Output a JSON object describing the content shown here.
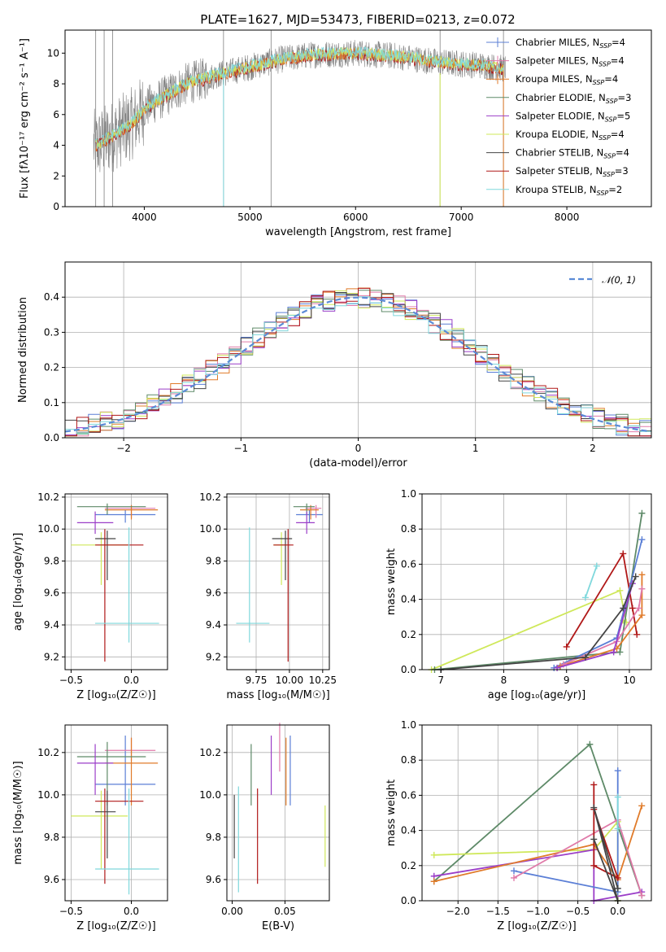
{
  "title": "PLATE=1627, MJD=53473, FIBERID=0213, z=0.072",
  "colors": {
    "chabrier_miles": "#5b7fd6",
    "salpeter_miles": "#e07aa9",
    "kroupa_miles": "#e07b2a",
    "chabrier_elodie": "#5e8a68",
    "salpeter_elodie": "#9b3ec8",
    "kroupa_elodie": "#cfe85a",
    "chabrier_stelib": "#444444",
    "salpeter_stelib": "#b01818",
    "kroupa_stelib": "#7fd8dc",
    "data": "#808080",
    "normal": "#5b8bd6"
  },
  "chart_data": [
    {
      "id": "spectrum",
      "type": "line",
      "xlabel": "wavelength [Angstrom, rest frame]",
      "ylabel": "Flux [fλ10⁻¹⁷ erg cm⁻² s⁻¹ A⁻¹]",
      "xlim": [
        3250,
        8800
      ],
      "ylim": [
        0,
        11.5
      ],
      "xticks": [
        "4000",
        "5000",
        "6000",
        "7000",
        "8000"
      ],
      "yticks": [
        "0",
        "2",
        "4",
        "6",
        "8",
        "10"
      ],
      "legend_position": "right",
      "legend": [
        {
          "label": "Chabrier MILES, N",
          "sub": "SSP",
          "suffix": "=4",
          "marker": true
        },
        {
          "label": "Salpeter MILES, N",
          "sub": "SSP",
          "suffix": "=4",
          "marker": true
        },
        {
          "label": "Kroupa MILES, N",
          "sub": "SSP",
          "suffix": "=4",
          "marker": true
        },
        {
          "label": "Chabrier ELODIE, N",
          "sub": "SSP",
          "suffix": "=3",
          "marker": false
        },
        {
          "label": "Salpeter ELODIE, N",
          "sub": "SSP",
          "suffix": "=5",
          "marker": false
        },
        {
          "label": "Kroupa ELODIE, N",
          "sub": "SSP",
          "suffix": "=4",
          "marker": false
        },
        {
          "label": "Chabrier STELIB, N",
          "sub": "SSP",
          "suffix": "=4",
          "marker": false
        },
        {
          "label": "Salpeter STELIB, N",
          "sub": "SSP",
          "suffix": "=3",
          "marker": false
        },
        {
          "label": "Kroupa STELIB, N",
          "sub": "SSP",
          "suffix": "=2",
          "marker": false
        }
      ],
      "continuum": {
        "x": [
          3550,
          3700,
          3900,
          4000,
          4200,
          4400,
          4700,
          5000,
          5300,
          5600,
          6000,
          6400,
          6800,
          7000,
          7200,
          7400
        ],
        "y": [
          4.0,
          4.6,
          5.5,
          6.4,
          7.2,
          8.0,
          8.6,
          9.1,
          9.6,
          9.9,
          10.0,
          9.8,
          9.4,
          9.3,
          9.2,
          9.0
        ]
      }
    },
    {
      "id": "residuals",
      "type": "histogram",
      "xlabel": "(data-model)/error",
      "ylabel": "Normed distribution",
      "xlim": [
        -2.5,
        2.5
      ],
      "ylim": [
        0,
        0.5
      ],
      "xticks": [
        "−2",
        "−1",
        "0",
        "1",
        "2"
      ],
      "yticks": [
        "0.0",
        "0.1",
        "0.2",
        "0.3",
        "0.4"
      ],
      "legend": "𝒩(0, 1)",
      "legend_position": "top-right",
      "bin_width": 0.1,
      "normal": {
        "mean": 0,
        "sigma": 1
      }
    },
    {
      "id": "age_vs_Z",
      "type": "errorbar",
      "xlabel": "Z [log₁₀(Z/Z☉)]",
      "ylabel": "age  [log₁₀(age/yr)]",
      "xlim": [
        -0.55,
        0.3
      ],
      "ylim": [
        9.12,
        10.22
      ],
      "xticks": [
        "−0.5",
        "0.0"
      ],
      "yticks": [
        "9.2",
        "9.4",
        "9.6",
        "9.8",
        "10.0",
        "10.2"
      ],
      "points": [
        {
          "model": "chabrier_miles",
          "x": -0.05,
          "xerr": [
            0.25,
            0.25
          ],
          "y": 10.09,
          "yerr": [
            0.05,
            0.03
          ]
        },
        {
          "model": "salpeter_miles",
          "x": 0.0,
          "xerr": [
            0.22,
            0.2
          ],
          "y": 10.13,
          "yerr": [
            0.06,
            0.02
          ]
        },
        {
          "model": "kroupa_miles",
          "x": 0.0,
          "xerr": [
            0.22,
            0.22
          ],
          "y": 10.12,
          "yerr": [
            0.06,
            0.03
          ]
        },
        {
          "model": "chabrier_elodie",
          "x": -0.2,
          "xerr": [
            0.25,
            0.32
          ],
          "y": 10.14,
          "yerr": [
            0.05,
            0.02
          ]
        },
        {
          "model": "salpeter_elodie",
          "x": -0.3,
          "xerr": [
            0.15,
            0.15
          ],
          "y": 10.04,
          "yerr": [
            0.07,
            0.07
          ]
        },
        {
          "model": "kroupa_elodie",
          "x": -0.25,
          "xerr": [
            0.25,
            0.22
          ],
          "y": 9.9,
          "yerr": [
            0.25,
            0.08
          ]
        },
        {
          "model": "chabrier_stelib",
          "x": -0.2,
          "xerr": [
            0.1,
            0.07
          ],
          "y": 9.94,
          "yerr": [
            0.26,
            0.05
          ]
        },
        {
          "model": "salpeter_stelib",
          "x": -0.22,
          "xerr": [
            0.08,
            0.32
          ],
          "y": 9.9,
          "yerr": [
            0.73,
            0.1
          ]
        },
        {
          "model": "kroupa_stelib",
          "x": -0.02,
          "xerr": [
            0.28,
            0.25
          ],
          "y": 9.41,
          "yerr": [
            0.12,
            0.6
          ]
        }
      ]
    },
    {
      "id": "age_vs_mass",
      "type": "errorbar",
      "xlabel": "mass [log₁₀(M/M☉)]",
      "ylabel": "",
      "xlim": [
        9.53,
        10.3
      ],
      "ylim": [
        9.12,
        10.22
      ],
      "xticks": [
        "9.75",
        "10.00",
        "10.25"
      ],
      "yticks": [
        "9.2",
        "9.4",
        "9.6",
        "9.8",
        "10.0",
        "10.2"
      ],
      "points": [
        {
          "model": "chabrier_miles",
          "x": 10.15,
          "xerr": [
            0.1,
            0.1
          ],
          "y": 10.09,
          "yerr": [
            0.05,
            0.03
          ]
        },
        {
          "model": "salpeter_miles",
          "x": 10.2,
          "xerr": [
            0.08,
            0.04
          ],
          "y": 10.13,
          "yerr": [
            0.06,
            0.02
          ]
        },
        {
          "model": "kroupa_miles",
          "x": 10.16,
          "xerr": [
            0.08,
            0.06
          ],
          "y": 10.12,
          "yerr": [
            0.06,
            0.03
          ]
        },
        {
          "model": "chabrier_elodie",
          "x": 10.13,
          "xerr": [
            0.1,
            0.06
          ],
          "y": 10.14,
          "yerr": [
            0.05,
            0.02
          ]
        },
        {
          "model": "salpeter_elodie",
          "x": 10.13,
          "xerr": [
            0.08,
            0.06
          ],
          "y": 10.04,
          "yerr": [
            0.07,
            0.07
          ]
        },
        {
          "model": "kroupa_elodie",
          "x": 9.94,
          "xerr": [
            0.06,
            0.04
          ],
          "y": 9.9,
          "yerr": [
            0.25,
            0.08
          ]
        },
        {
          "model": "chabrier_stelib",
          "x": 9.97,
          "xerr": [
            0.1,
            0.05
          ],
          "y": 9.94,
          "yerr": [
            0.26,
            0.05
          ]
        },
        {
          "model": "salpeter_stelib",
          "x": 9.99,
          "xerr": [
            0.11,
            0.04
          ],
          "y": 9.9,
          "yerr": [
            0.73,
            0.1
          ]
        },
        {
          "model": "kroupa_stelib",
          "x": 9.7,
          "xerr": [
            0.1,
            0.15
          ],
          "y": 9.41,
          "yerr": [
            0.12,
            0.6
          ]
        }
      ]
    },
    {
      "id": "massweight_vs_age",
      "type": "line",
      "xlabel": "age  [log₁₀(age/yr)]",
      "ylabel": "mass weight",
      "xlim": [
        6.7,
        10.35
      ],
      "ylim": [
        0,
        1
      ],
      "xticks": [
        "7",
        "8",
        "9",
        "10"
      ],
      "yticks": [
        "0.0",
        "0.2",
        "0.4",
        "0.6",
        "0.8",
        "1.0"
      ],
      "series": [
        {
          "model": "kroupa_elodie",
          "x": [
            6.85,
            9.85,
            9.95,
            9.9
          ],
          "y": [
            0.0,
            0.45,
            0.27,
            0.28
          ]
        },
        {
          "model": "kroupa_stelib",
          "x": [
            9.3,
            9.48
          ],
          "y": [
            0.41,
            0.59
          ]
        },
        {
          "model": "salpeter_stelib",
          "x": [
            9.0,
            9.9,
            10.05,
            10.12
          ],
          "y": [
            0.13,
            0.66,
            0.35,
            0.2
          ]
        },
        {
          "model": "chabrier_elodie",
          "x": [
            6.9,
            9.85,
            10.2
          ],
          "y": [
            0.0,
            0.1,
            0.89
          ]
        },
        {
          "model": "chabrier_miles",
          "x": [
            8.8,
            9.8,
            10.2
          ],
          "y": [
            0.01,
            0.18,
            0.74
          ]
        },
        {
          "model": "kroupa_miles",
          "x": [
            8.9,
            9.8,
            10.2,
            10.2
          ],
          "y": [
            0.02,
            0.12,
            0.31,
            0.54
          ]
        },
        {
          "model": "salpeter_miles",
          "x": [
            8.95,
            9.8,
            10.15,
            10.2
          ],
          "y": [
            0.03,
            0.16,
            0.35,
            0.46
          ]
        },
        {
          "model": "salpeter_elodie",
          "x": [
            8.85,
            9.75,
            10.05
          ],
          "y": [
            0.01,
            0.1,
            0.49
          ]
        },
        {
          "model": "chabrier_stelib",
          "x": [
            7.0,
            9.3,
            9.9,
            10.1
          ],
          "y": [
            0.0,
            0.07,
            0.35,
            0.53
          ]
        }
      ]
    },
    {
      "id": "mass_vs_Z",
      "type": "errorbar",
      "xlabel": "Z [log₁₀(Z/Z☉)]",
      "ylabel": "mass [log₁₀(M/M☉)]",
      "xlim": [
        -0.55,
        0.3
      ],
      "ylim": [
        9.5,
        10.33
      ],
      "xticks": [
        "−0.5",
        "0.0"
      ],
      "yticks": [
        "9.6",
        "9.8",
        "10.0",
        "10.2"
      ],
      "points": [
        {
          "model": "chabrier_miles",
          "x": -0.05,
          "xerr": [
            0.25,
            0.25
          ],
          "y": 10.05,
          "yerr": [
            0.1,
            0.23
          ]
        },
        {
          "model": "salpeter_miles",
          "x": 0.0,
          "xerr": [
            0.22,
            0.2
          ],
          "y": 10.21,
          "yerr": [
            0.05,
            0.06
          ]
        },
        {
          "model": "kroupa_miles",
          "x": 0.0,
          "xerr": [
            0.22,
            0.22
          ],
          "y": 10.15,
          "yerr": [
            0.2,
            0.12
          ]
        },
        {
          "model": "chabrier_elodie",
          "x": -0.2,
          "xerr": [
            0.25,
            0.32
          ],
          "y": 10.18,
          "yerr": [
            0.23,
            0.07
          ]
        },
        {
          "model": "salpeter_elodie",
          "x": -0.3,
          "xerr": [
            0.15,
            0.15
          ],
          "y": 10.15,
          "yerr": [
            0.15,
            0.09
          ]
        },
        {
          "model": "kroupa_elodie",
          "x": -0.25,
          "xerr": [
            0.25,
            0.22
          ],
          "y": 9.9,
          "yerr": [
            0.25,
            0.12
          ]
        },
        {
          "model": "chabrier_stelib",
          "x": -0.2,
          "xerr": [
            0.1,
            0.07
          ],
          "y": 9.92,
          "yerr": [
            0.22,
            0.1
          ]
        },
        {
          "model": "salpeter_stelib",
          "x": -0.22,
          "xerr": [
            0.08,
            0.32
          ],
          "y": 9.97,
          "yerr": [
            0.39,
            0.06
          ]
        },
        {
          "model": "kroupa_stelib",
          "x": -0.02,
          "xerr": [
            0.28,
            0.25
          ],
          "y": 9.65,
          "yerr": [
            0.12,
            0.38
          ]
        }
      ]
    },
    {
      "id": "mass_vs_ebv",
      "type": "errorbar",
      "xlabel": "E(B-V)",
      "ylabel": "",
      "xlim": [
        -0.005,
        0.092
      ],
      "ylim": [
        9.5,
        10.33
      ],
      "xticks": [
        "0.00",
        "0.05"
      ],
      "yticks": [
        "9.6",
        "9.8",
        "10.0",
        "10.2"
      ],
      "points": [
        {
          "model": "chabrier_miles",
          "x": 0.055,
          "y": 10.05,
          "yerr": [
            0.1,
            0.23
          ]
        },
        {
          "model": "salpeter_miles",
          "x": 0.045,
          "y": 10.21,
          "yerr": [
            0.1,
            0.13
          ]
        },
        {
          "model": "kroupa_miles",
          "x": 0.051,
          "y": 10.15,
          "yerr": [
            0.2,
            0.12
          ]
        },
        {
          "model": "chabrier_elodie",
          "x": 0.018,
          "y": 10.1,
          "yerr": [
            0.15,
            0.14
          ]
        },
        {
          "model": "salpeter_elodie",
          "x": 0.037,
          "y": 10.15,
          "yerr": [
            0.15,
            0.13
          ]
        },
        {
          "model": "kroupa_elodie",
          "x": 0.088,
          "y": 9.8,
          "yerr": [
            0.14,
            0.15
          ]
        },
        {
          "model": "chabrier_stelib",
          "x": 0.002,
          "y": 9.85,
          "yerr": [
            0.15,
            0.15
          ]
        },
        {
          "model": "salpeter_stelib",
          "x": 0.024,
          "y": 9.8,
          "yerr": [
            0.22,
            0.23
          ]
        },
        {
          "model": "kroupa_stelib",
          "x": 0.006,
          "y": 9.78,
          "yerr": [
            0.24,
            0.26
          ]
        }
      ]
    },
    {
      "id": "massweight_vs_Z",
      "type": "line",
      "xlabel": "Z [log₁₀(Z/Z☉)]",
      "ylabel": "mass weight",
      "xlim": [
        -2.45,
        0.42
      ],
      "ylim": [
        0,
        1
      ],
      "xticks": [
        "−2.0",
        "−1.5",
        "−1.0",
        "−0.5",
        "0.0"
      ],
      "yticks": [
        "0.0",
        "0.2",
        "0.4",
        "0.6",
        "0.8",
        "1.0"
      ],
      "series": [
        {
          "model": "chabrier_elodie",
          "x": [
            -2.3,
            -0.35,
            0.3
          ],
          "y": [
            0.11,
            0.89,
            0.03
          ]
        },
        {
          "model": "kroupa_elodie",
          "x": [
            -2.3,
            -0.3,
            0.0,
            0.0
          ],
          "y": [
            0.26,
            0.29,
            0.45,
            0.0
          ]
        },
        {
          "model": "salpeter_elodie",
          "x": [
            -2.3,
            -0.3,
            -0.3,
            0.3
          ],
          "y": [
            0.14,
            0.29,
            0.0,
            0.05
          ]
        },
        {
          "model": "kroupa_miles",
          "x": [
            -2.3,
            -0.3,
            0.0,
            0.3
          ],
          "y": [
            0.11,
            0.32,
            0.12,
            0.54
          ]
        },
        {
          "model": "chabrier_miles",
          "x": [
            -1.3,
            0.0,
            0.0
          ],
          "y": [
            0.17,
            0.05,
            0.74
          ]
        },
        {
          "model": "salpeter_miles",
          "x": [
            -1.3,
            0.0,
            0.3
          ],
          "y": [
            0.13,
            0.46,
            0.03
          ]
        },
        {
          "model": "salpeter_stelib",
          "x": [
            -0.3,
            -0.3,
            0.0,
            -0.3
          ],
          "y": [
            0.66,
            0.2,
            0.13,
            0.52
          ]
        },
        {
          "model": "chabrier_stelib",
          "x": [
            -0.3,
            0.0,
            -0.3,
            0.0
          ],
          "y": [
            0.35,
            0.0,
            0.53,
            0.07
          ]
        },
        {
          "model": "kroupa_stelib",
          "x": [
            0.0,
            0.0
          ],
          "y": [
            0.41,
            0.59
          ]
        }
      ]
    }
  ]
}
